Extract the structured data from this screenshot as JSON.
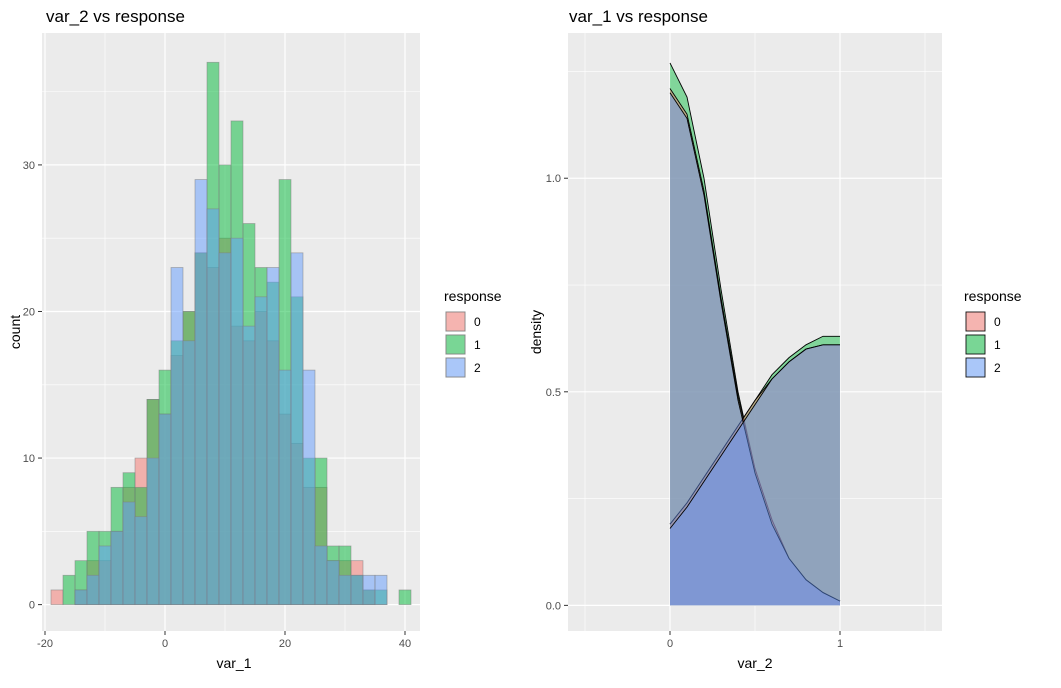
{
  "chart_data": [
    {
      "type": "bar",
      "subtype": "histogram",
      "title": "var_2 vs response",
      "xlabel": "var_1",
      "ylabel": "count",
      "xlim": [
        -20.5,
        42.5
      ],
      "ylim": [
        -1.8,
        39
      ],
      "xticks": [
        -20,
        0,
        20,
        40
      ],
      "xtick_labels": [
        "-20",
        "0",
        "20",
        "40"
      ],
      "yticks": [
        0,
        10,
        20,
        30
      ],
      "ytick_labels": [
        "0",
        "10",
        "20",
        "30"
      ],
      "grid": true,
      "bin_width": 2,
      "bin_centers": [
        -18,
        -16,
        -14,
        -12,
        -10,
        -8,
        -6,
        -4,
        -2,
        0,
        2,
        4,
        6,
        8,
        10,
        12,
        14,
        16,
        18,
        20,
        22,
        24,
        26,
        28,
        30,
        32,
        34,
        36,
        38,
        40
      ],
      "series": [
        {
          "name": "0",
          "color": "#F8766D",
          "values": [
            1,
            0,
            1,
            3,
            3,
            5,
            8,
            10,
            14,
            13,
            17,
            20,
            24,
            23,
            25,
            19,
            18,
            20,
            18,
            13,
            11,
            8,
            8,
            3,
            3,
            3,
            1,
            0,
            0,
            0
          ]
        },
        {
          "name": "1",
          "color": "#00BA38",
          "values": [
            0,
            2,
            3,
            5,
            5,
            8,
            9,
            8,
            14,
            16,
            18,
            20,
            24,
            37,
            30,
            33,
            26,
            23,
            22,
            29,
            21,
            10,
            10,
            4,
            4,
            2,
            1,
            1,
            0,
            1
          ]
        },
        {
          "name": "2",
          "color": "#619CFF",
          "values": [
            0,
            0,
            1,
            2,
            4,
            5,
            7,
            6,
            10,
            13,
            23,
            18,
            29,
            27,
            24,
            25,
            19,
            21,
            23,
            16,
            24,
            16,
            4,
            3,
            2,
            2,
            2,
            2,
            0,
            0
          ]
        }
      ],
      "legend": {
        "title": "response",
        "position": "right",
        "labels": [
          "0",
          "1",
          "2"
        ]
      }
    },
    {
      "type": "area",
      "subtype": "density",
      "title": "var_1 vs response",
      "xlabel": "var_2",
      "ylabel": "density",
      "xlim": [
        -0.6,
        1.6
      ],
      "ylim": [
        -0.06,
        1.34
      ],
      "xticks": [
        0,
        1
      ],
      "xtick_labels": [
        "0",
        "1"
      ],
      "yticks": [
        0.0,
        0.5,
        1.0
      ],
      "ytick_labels": [
        "0.0",
        "0.5",
        "1.0"
      ],
      "grid": true,
      "series": [
        {
          "name": "0",
          "color": "#F8766D",
          "x": [
            0,
            0.1,
            0.2,
            0.3,
            0.4,
            0.5,
            0.6,
            0.7,
            0.8,
            0.9,
            1.0
          ],
          "falling": [
            1.21,
            1.15,
            0.97,
            0.72,
            0.49,
            0.32,
            0.2,
            0.11,
            0.06,
            0.03,
            0.01
          ],
          "rising": [
            0.19,
            0.24,
            0.3,
            0.36,
            0.42,
            0.48,
            0.53,
            0.57,
            0.6,
            0.61,
            0.61
          ]
        },
        {
          "name": "1",
          "color": "#00BA38",
          "x": [
            0,
            0.1,
            0.2,
            0.3,
            0.4,
            0.5,
            0.6,
            0.7,
            0.8,
            0.9,
            1.0
          ],
          "falling": [
            1.27,
            1.19,
            1.0,
            0.74,
            0.5,
            0.32,
            0.2,
            0.11,
            0.06,
            0.03,
            0.01
          ],
          "rising": [
            0.19,
            0.24,
            0.3,
            0.36,
            0.42,
            0.48,
            0.54,
            0.58,
            0.61,
            0.63,
            0.63
          ]
        },
        {
          "name": "2",
          "color": "#619CFF",
          "x": [
            0,
            0.1,
            0.2,
            0.3,
            0.4,
            0.5,
            0.6,
            0.7,
            0.8,
            0.9,
            1.0
          ],
          "falling": [
            1.2,
            1.14,
            0.96,
            0.71,
            0.48,
            0.31,
            0.19,
            0.11,
            0.06,
            0.03,
            0.01
          ],
          "rising": [
            0.18,
            0.23,
            0.29,
            0.35,
            0.41,
            0.47,
            0.53,
            0.57,
            0.6,
            0.61,
            0.61
          ]
        }
      ],
      "legend": {
        "title": "response",
        "position": "right",
        "labels": [
          "0",
          "1",
          "2"
        ]
      }
    }
  ]
}
